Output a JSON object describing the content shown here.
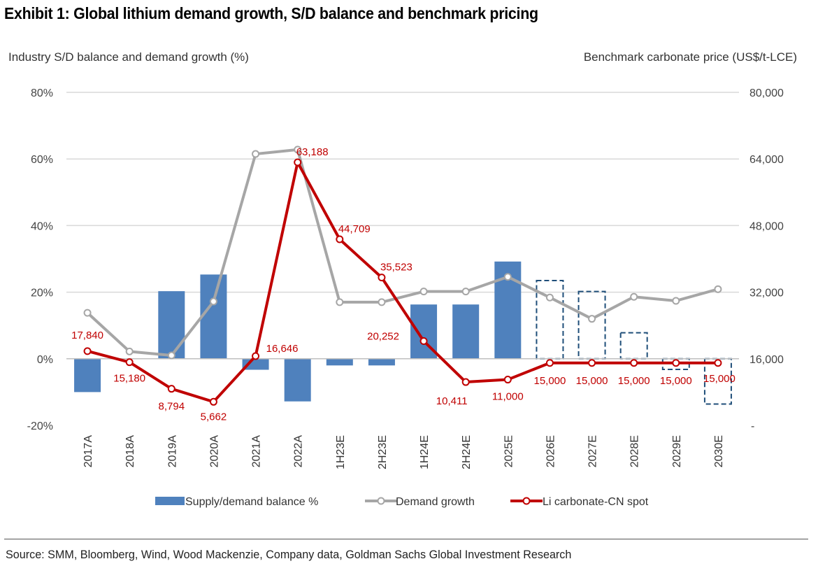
{
  "title": "Exhibit 1: Global lithium demand growth, S/D balance and benchmark pricing",
  "source": "Source: SMM, Bloomberg, Wind, Wood Mackenzie, Company data, Goldman Sachs Global Investment Research",
  "chart_data": {
    "type": "bar",
    "title": "Exhibit 1: Global lithium demand growth, S/D balance and benchmark pricing",
    "ylabel_left": "Industry S/D balance and demand growth (%)",
    "ylabel_right": "Benchmark carbonate price (US$/t-LCE)",
    "left_ticks": [
      "80%",
      "60%",
      "40%",
      "20%",
      "0%",
      "-20%"
    ],
    "right_ticks": [
      "80,000",
      "64,000",
      "48,000",
      "32,000",
      "16,000",
      "-"
    ],
    "ylim_left": [
      -20,
      80
    ],
    "ylim_right": [
      0,
      80000
    ],
    "categories": [
      "2017A",
      "2018A",
      "2019A",
      "2020A",
      "2021A",
      "2022A",
      "1H23E",
      "2H23E",
      "1H24E",
      "2H24E",
      "2025E",
      "2026E",
      "2027E",
      "2028E",
      "2029E",
      "2030E"
    ],
    "series": [
      {
        "name": "Supply/demand balance %",
        "type": "bar",
        "axis": "left",
        "color": "#4f81bd",
        "forecast_style": "dashed-outline",
        "values": [
          -10,
          0,
          20.3,
          25.3,
          -3.3,
          -12.8,
          -2,
          -2,
          16.3,
          16.3,
          29.2,
          23.5,
          20.2,
          7.8,
          -3.2,
          -13.6
        ],
        "forecast": [
          false,
          false,
          false,
          false,
          false,
          false,
          false,
          false,
          false,
          false,
          false,
          true,
          true,
          true,
          true,
          true
        ]
      },
      {
        "name": "Demand growth",
        "type": "line",
        "axis": "left",
        "color": "#a6a6a6",
        "values": [
          13.8,
          2.2,
          1.0,
          17.2,
          61.5,
          62.8,
          17.0,
          17.0,
          20.2,
          20.2,
          24.6,
          18.4,
          12.0,
          18.6,
          17.4,
          20.9
        ]
      },
      {
        "name": "Li carbonate-CN spot",
        "type": "line",
        "axis": "right",
        "color": "#c00000",
        "values": [
          17840,
          15180,
          8794,
          5662,
          16646,
          63188,
          44709,
          35523,
          20252,
          10411,
          11000,
          15000,
          15000,
          15000,
          15000,
          15000
        ],
        "labels": [
          "17,840",
          "15,180",
          "8,794",
          "5,662",
          "16,646",
          "63,188",
          "44,709",
          "35,523",
          "20,252",
          "10,411",
          "11,000",
          "15,000",
          "15,000",
          "15,000",
          "15,000",
          "15,000"
        ]
      }
    ],
    "legend": [
      "Supply/demand balance %",
      "Demand growth",
      "Li carbonate-CN spot"
    ],
    "legend_position": "bottom",
    "grid": true
  }
}
